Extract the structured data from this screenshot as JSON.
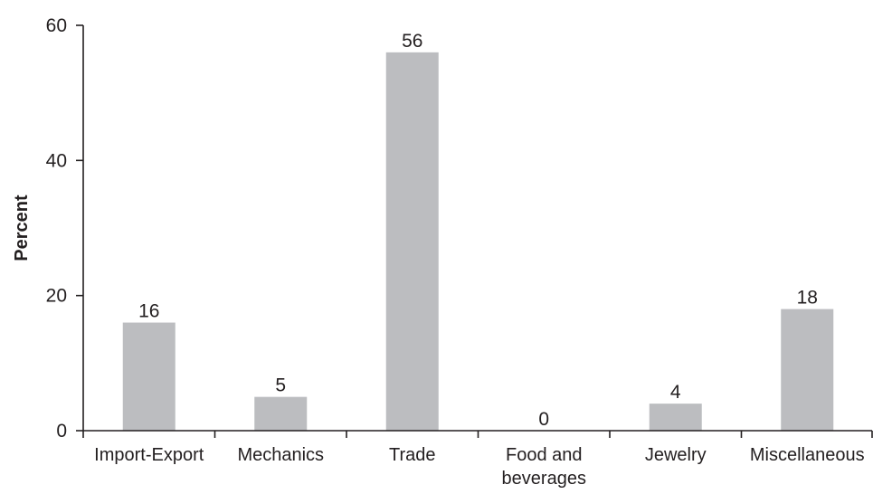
{
  "chart_data": {
    "type": "bar",
    "title": "",
    "xlabel": "",
    "ylabel": "Percent",
    "ylim": [
      0,
      60
    ],
    "yticks": [
      0,
      20,
      40,
      60
    ],
    "grid": false,
    "categories": [
      "Import-Export",
      "Mechanics",
      "Trade",
      "Food and beverages",
      "Jewelry",
      "Miscellaneous"
    ],
    "category_lines": [
      [
        "Import-Export"
      ],
      [
        "Mechanics"
      ],
      [
        "Trade"
      ],
      [
        "Food and",
        "beverages"
      ],
      [
        "Jewelry"
      ],
      [
        "Miscellaneous"
      ]
    ],
    "values": [
      16,
      5,
      56,
      0,
      4,
      18
    ],
    "data_labels": [
      "16",
      "5",
      "56",
      "0",
      "4",
      "18"
    ],
    "bar_color": "#bcbdc0",
    "axis_color": "#231f20"
  }
}
